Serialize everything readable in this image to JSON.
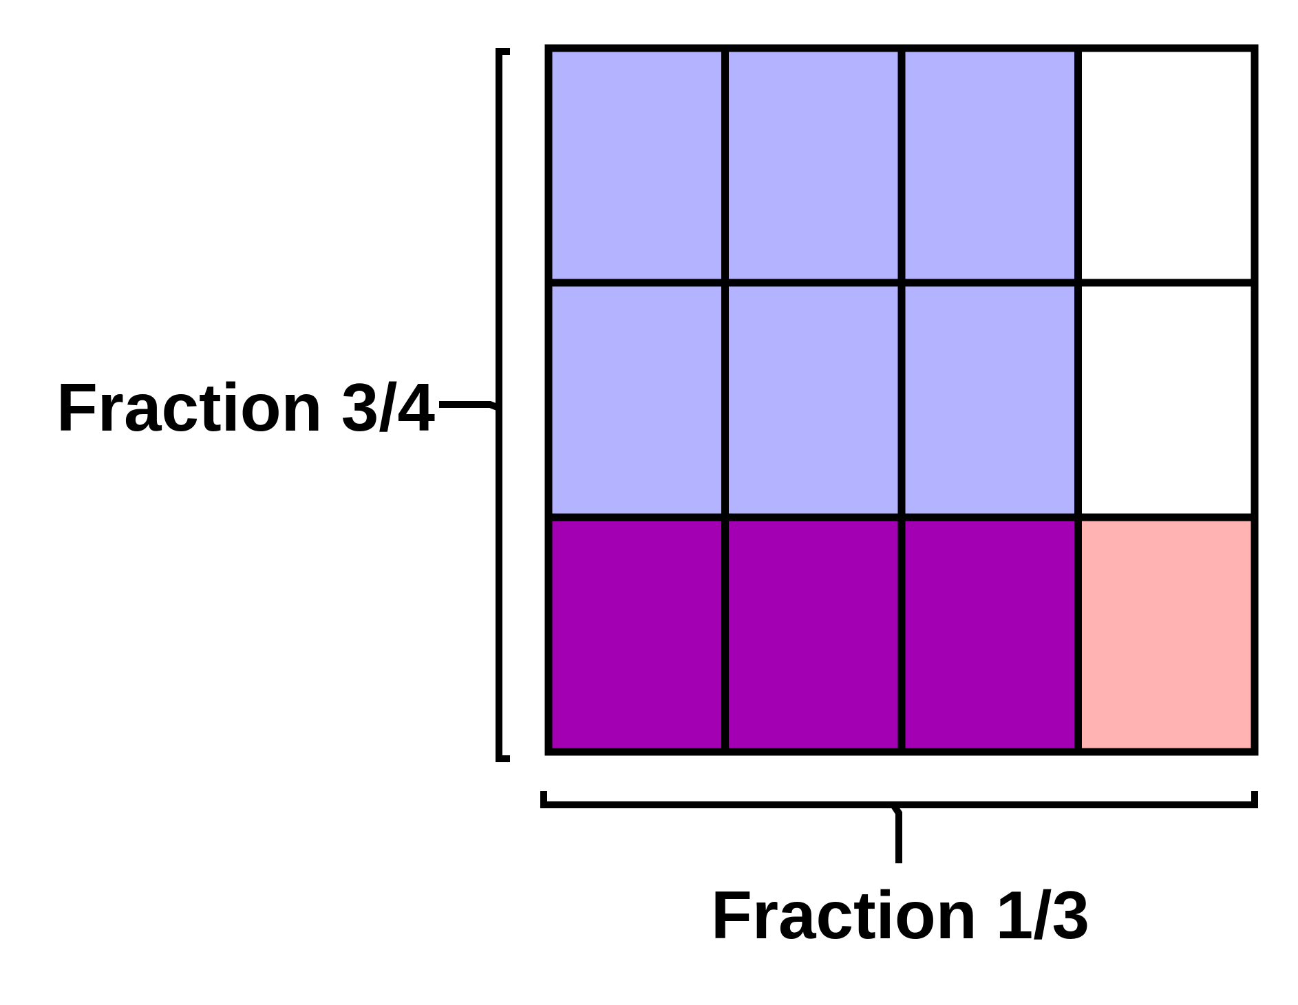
{
  "diagram": {
    "rows": 3,
    "cols": 4,
    "cells": [
      [
        "#b3b3ff",
        "#b3b3ff",
        "#b3b3ff",
        "#ffffff"
      ],
      [
        "#b3b3ff",
        "#b3b3ff",
        "#b3b3ff",
        "#ffffff"
      ],
      [
        "#a300b3",
        "#a300b3",
        "#a300b3",
        "#ffb3b3"
      ]
    ],
    "grid_line_color": "#000000",
    "labels": {
      "left": "Fraction 3/4",
      "bottom": "Fraction 1/3"
    }
  }
}
